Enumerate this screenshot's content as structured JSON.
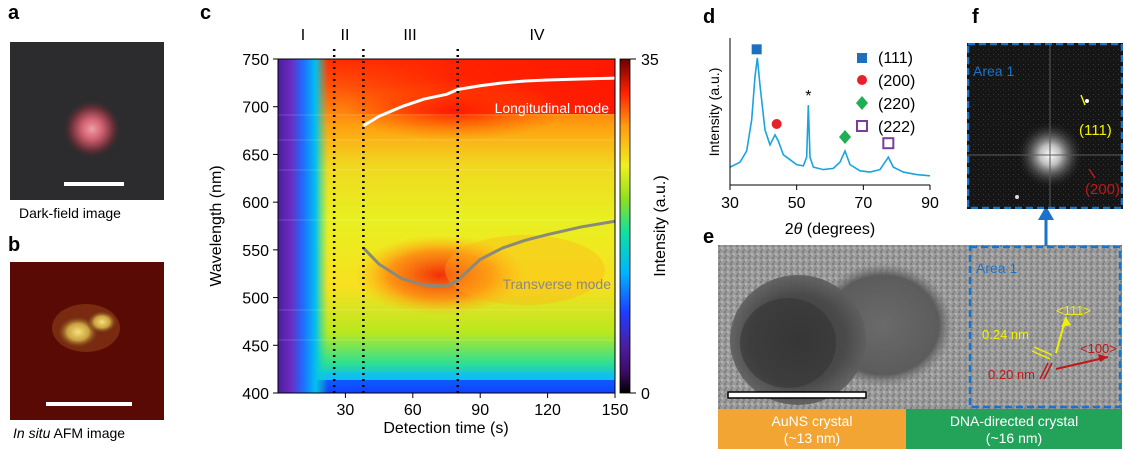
{
  "panels": {
    "a": {
      "letter": "a",
      "caption": "Dark-field image"
    },
    "b": {
      "letter": "b",
      "caption_italic": "In situ",
      "caption_rest": " AFM image"
    },
    "c": {
      "letter": "c",
      "phases": [
        "I",
        "II",
        "III",
        "IV"
      ],
      "xlabel": "Detection time (s)",
      "ylabel": "Wavelength (nm)",
      "colorbar_label": "Intensity (a.u.)",
      "colorbar_max": "35",
      "colorbar_min": "0",
      "mode_top": "Longitudinal mode",
      "mode_bottom": "Transverse mode"
    },
    "d": {
      "letter": "d",
      "xlabel_theta": "θ",
      "xlabel_prefix": "2",
      "xlabel_suffix": " (degrees)",
      "ylabel": "Intensity (a.u.)",
      "star": "*",
      "legend": [
        "(111)",
        "(200)",
        "(220)",
        "(222)"
      ]
    },
    "e": {
      "letter": "e",
      "area_label": "Area 1",
      "dir_111": "<111>",
      "dir_100": "<100>",
      "spacing_1": "0.24 nm",
      "spacing_2": "0.20 nm",
      "bar_left_line1": "AuNS crystal",
      "bar_left_line2": "(~13 nm)",
      "bar_right_line1": "DNA-directed crystal",
      "bar_right_line2": "(~16 nm)"
    },
    "f": {
      "letter": "f",
      "area_label": "Area 1",
      "spot_111": "(111)",
      "spot_200": "(200)"
    }
  },
  "chart_data": [
    {
      "type": "heatmap",
      "xlabel": "Detection time (s)",
      "ylabel": "Wavelength (nm)",
      "xlim": [
        0,
        150
      ],
      "ylim": [
        400,
        750
      ],
      "xticks": [
        30,
        60,
        90,
        120,
        150
      ],
      "yticks": [
        400,
        450,
        500,
        550,
        600,
        650,
        700,
        750
      ],
      "phase_boundaries": [
        25,
        38,
        80
      ],
      "colorbar": {
        "label": "Intensity (a.u.)",
        "min": 0,
        "max": 35
      },
      "series": [
        {
          "name": "Longitudinal mode",
          "color": "#ffffff",
          "x": [
            38,
            45,
            55,
            65,
            75,
            80,
            90,
            100,
            110,
            120,
            135,
            150
          ],
          "y": [
            680,
            690,
            700,
            708,
            713,
            718,
            722,
            725,
            727,
            728,
            729,
            730
          ]
        },
        {
          "name": "Transverse mode",
          "color": "#8a8a7a",
          "x": [
            38,
            45,
            55,
            65,
            75,
            80,
            90,
            100,
            110,
            120,
            135,
            150
          ],
          "y": [
            552,
            535,
            520,
            513,
            512,
            518,
            540,
            552,
            560,
            566,
            574,
            580
          ]
        }
      ]
    },
    {
      "type": "line",
      "xlabel": "2θ (degrees)",
      "ylabel": "Intensity (a.u.)",
      "xlim": [
        30,
        90
      ],
      "xticks": [
        30,
        50,
        70,
        90
      ],
      "series": [
        {
          "color": "#1aa3e0",
          "x": [
            30,
            33,
            35,
            36.5,
            37.5,
            38.2,
            39,
            40.5,
            42,
            43.5,
            44.5,
            46,
            48,
            50,
            52,
            53,
            53.5,
            54,
            55,
            58,
            61,
            63,
            64.5,
            66,
            69,
            72,
            75,
            77.5,
            79,
            82,
            86,
            90
          ],
          "y": [
            0.12,
            0.16,
            0.25,
            0.5,
            0.85,
            1.0,
            0.78,
            0.42,
            0.3,
            0.38,
            0.33,
            0.22,
            0.18,
            0.14,
            0.13,
            0.2,
            0.62,
            0.2,
            0.12,
            0.1,
            0.11,
            0.16,
            0.25,
            0.14,
            0.09,
            0.08,
            0.1,
            0.2,
            0.12,
            0.08,
            0.06,
            0.05
          ]
        }
      ],
      "peak_markers": [
        {
          "label": "(111)",
          "x": 38,
          "color": "#1f6fbf",
          "shape": "square"
        },
        {
          "label": "(200)",
          "x": 44,
          "color": "#e8202a",
          "shape": "circle"
        },
        {
          "label": "(220)",
          "x": 64.5,
          "color": "#1fae52",
          "shape": "diamond"
        },
        {
          "label": "(222)",
          "x": 77.5,
          "color": "#7a3d9a",
          "shape": "open-square"
        }
      ]
    }
  ]
}
